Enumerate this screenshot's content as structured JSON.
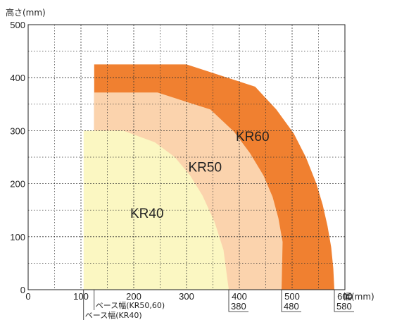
{
  "chart_data": {
    "type": "area",
    "title": "",
    "ylabel": "高さ(mm)",
    "xlabel": "幅(mm)",
    "xlim": [
      0,
      600
    ],
    "ylim": [
      0,
      500
    ],
    "x_ticks": [
      "0",
      "100",
      "200",
      "300",
      "400",
      "500",
      "600"
    ],
    "y_ticks": [
      "0",
      "100",
      "200",
      "300",
      "400",
      "500"
    ],
    "grid": true,
    "colors": {
      "KR60": "#f08030",
      "KR50": "#fbd3ad",
      "KR40": "#fbf7c2"
    },
    "series": [
      {
        "name": "KR60",
        "boundary": [
          [
            125,
            425
          ],
          [
            300,
            425
          ],
          [
            430,
            383
          ],
          [
            470,
            340
          ],
          [
            503,
            295
          ],
          [
            526,
            250
          ],
          [
            546,
            200
          ],
          [
            558,
            160
          ],
          [
            567,
            120
          ],
          [
            574,
            80
          ],
          [
            578,
            40
          ],
          [
            580,
            0
          ],
          [
            125,
            0
          ]
        ]
      },
      {
        "name": "KR50",
        "boundary": [
          [
            125,
            372
          ],
          [
            245,
            372
          ],
          [
            345,
            340
          ],
          [
            390,
            298
          ],
          [
            420,
            258
          ],
          [
            446,
            215
          ],
          [
            463,
            175
          ],
          [
            474,
            135
          ],
          [
            482,
            90
          ],
          [
            480,
            0
          ],
          [
            125,
            0
          ]
        ]
      },
      {
        "name": "KR40",
        "boundary": [
          [
            105,
            300
          ],
          [
            180,
            300
          ],
          [
            240,
            278
          ],
          [
            278,
            250
          ],
          [
            307,
            215
          ],
          [
            330,
            178
          ],
          [
            353,
            128
          ],
          [
            370,
            75
          ],
          [
            380,
            0
          ],
          [
            105,
            0
          ]
        ]
      }
    ],
    "annotations": {
      "base_width_kr50_60": "ベース幅(KR50,60)",
      "base_width_kr40": "ベース幅(KR40)",
      "extent_values": [
        "380",
        "480",
        "580"
      ]
    }
  }
}
